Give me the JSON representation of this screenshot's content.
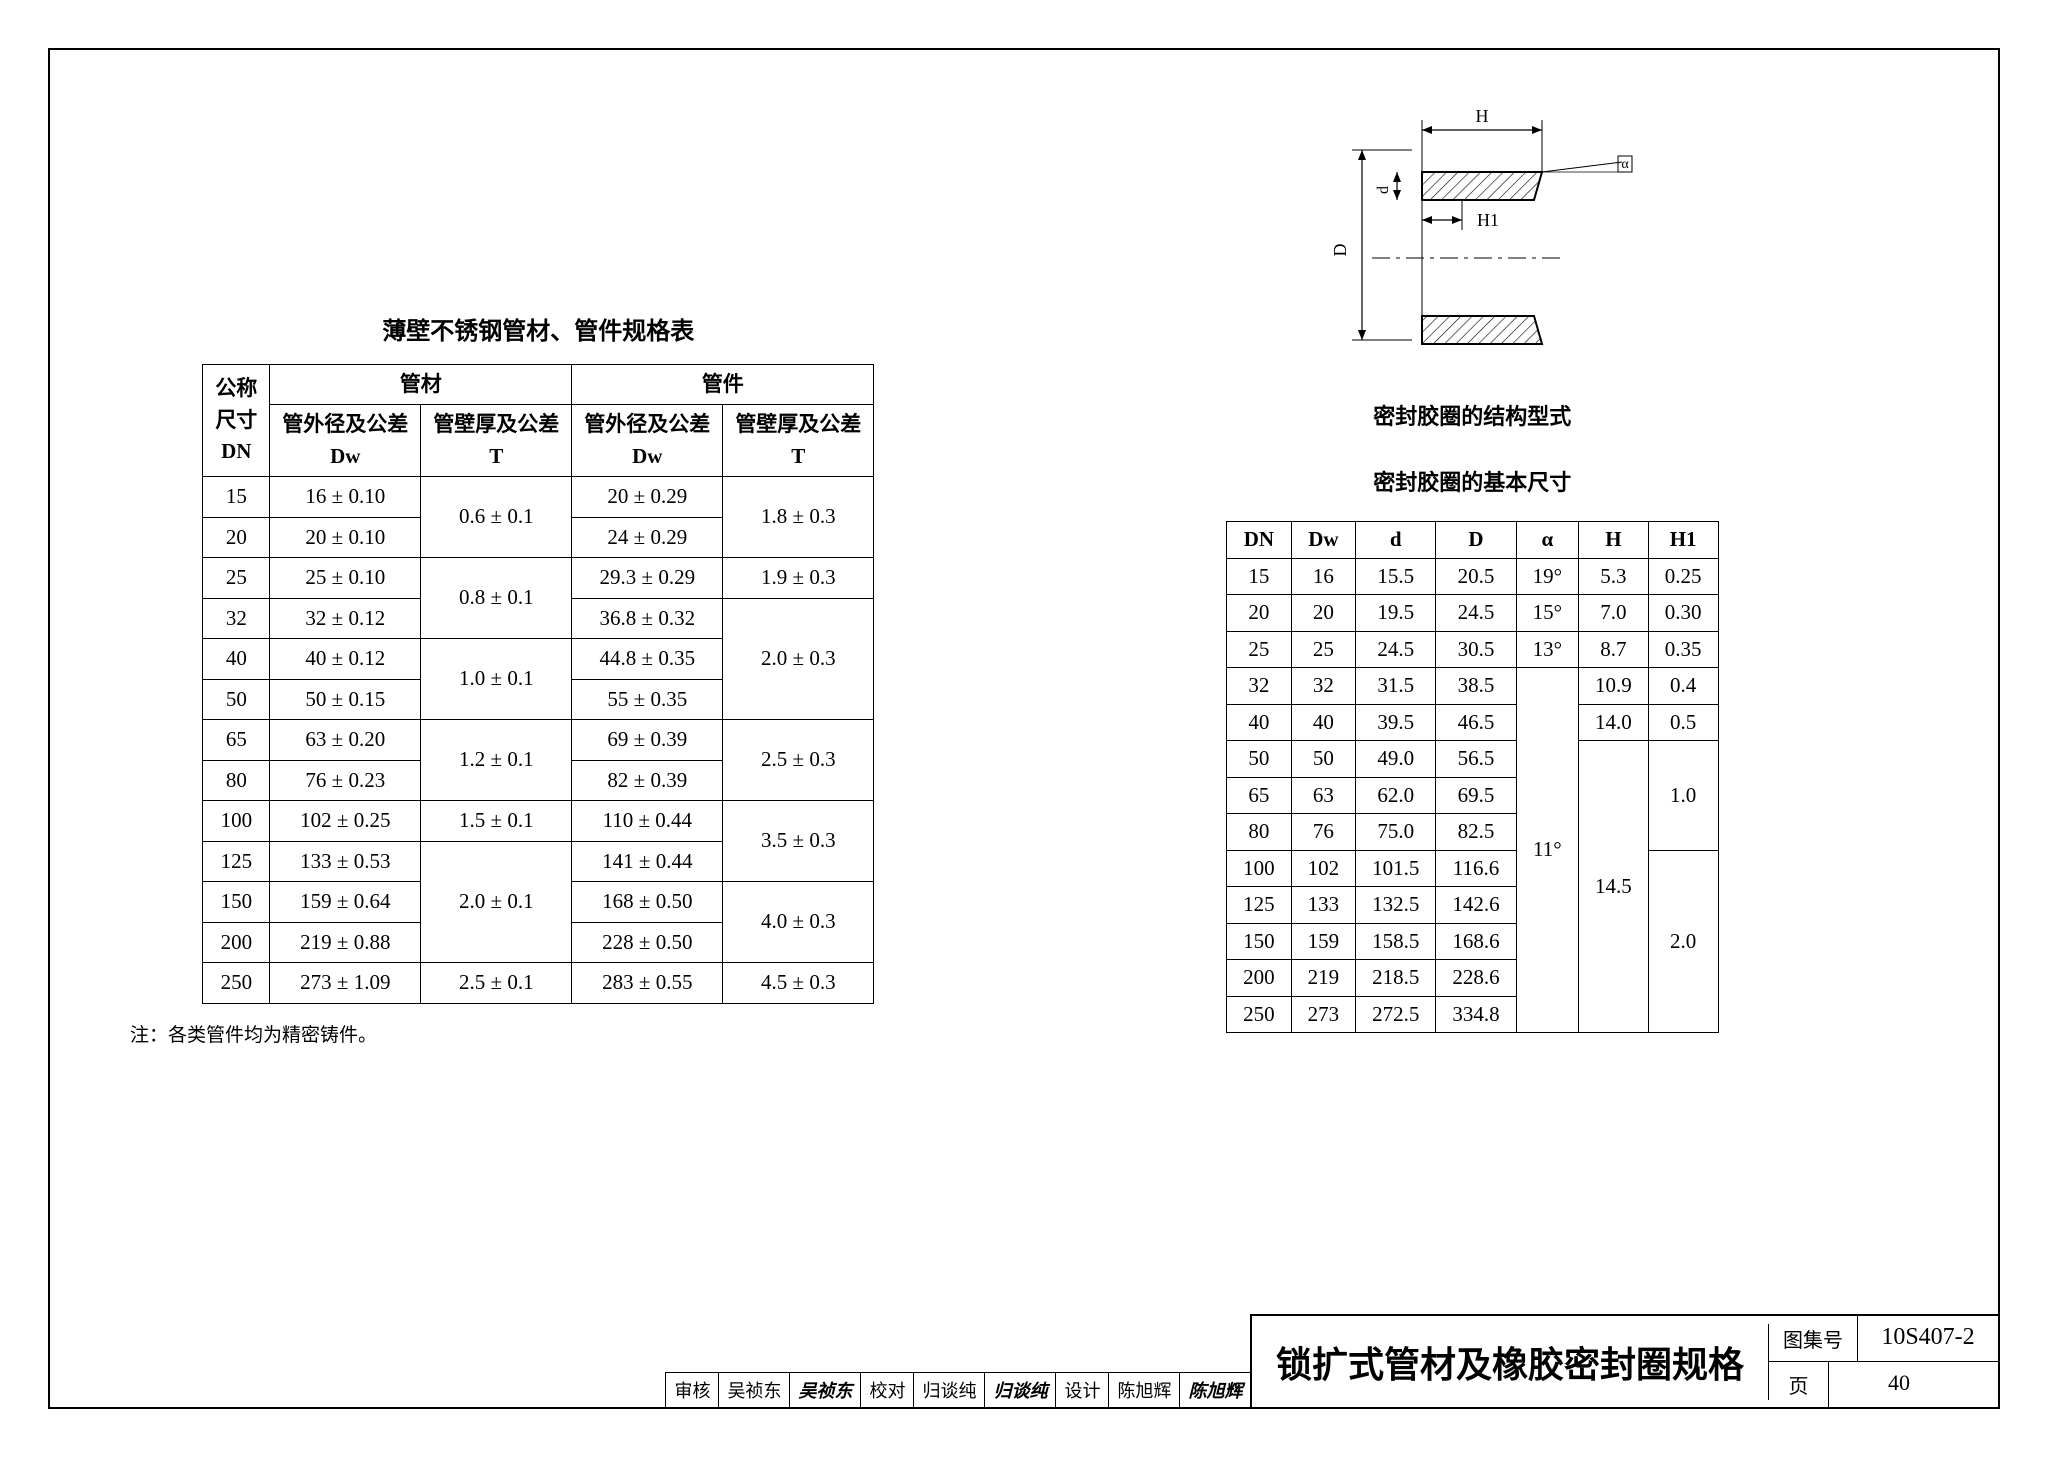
{
  "left": {
    "title": "薄壁不锈钢管材、管件规格表",
    "headers": {
      "c1a": "公称",
      "c1b": "尺寸",
      "c1c": "DN",
      "g1": "管材",
      "g2": "管件",
      "h1a": "管外径及公差",
      "h1b": "Dw",
      "h2a": "管壁厚及公差",
      "h2b": "T",
      "h3a": "管外径及公差",
      "h3b": "Dw",
      "h4a": "管壁厚及公差",
      "h4b": "T"
    },
    "rows": [
      {
        "dn": "15",
        "dw": "16 ± 0.10",
        "t": "0.6 ± 0.1",
        "t_span": 2,
        "dw2": "20 ± 0.29",
        "t2": "1.8 ± 0.3",
        "t2_span": 2
      },
      {
        "dn": "20",
        "dw": "20 ± 0.10",
        "dw2": "24 ± 0.29"
      },
      {
        "dn": "25",
        "dw": "25 ± 0.10",
        "t": "0.8 ± 0.1",
        "t_span": 2,
        "dw2": "29.3 ± 0.29",
        "t2": "1.9 ± 0.3",
        "t2_span": 1
      },
      {
        "dn": "32",
        "dw": "32 ± 0.12",
        "dw2": "36.8 ± 0.32",
        "t2": "2.0 ± 0.3",
        "t2_span": 3
      },
      {
        "dn": "40",
        "dw": "40 ± 0.12",
        "t": "1.0 ± 0.1",
        "t_span": 2,
        "dw2": "44.8 ± 0.35"
      },
      {
        "dn": "50",
        "dw": "50 ± 0.15",
        "dw2": "55 ± 0.35"
      },
      {
        "dn": "65",
        "dw": "63 ± 0.20",
        "t": "1.2 ± 0.1",
        "t_span": 2,
        "dw2": "69 ± 0.39",
        "t2": "2.5 ± 0.3",
        "t2_span": 2
      },
      {
        "dn": "80",
        "dw": "76 ± 0.23",
        "dw2": "82 ± 0.39"
      },
      {
        "dn": "100",
        "dw": "102 ± 0.25",
        "t": "1.5 ± 0.1",
        "t_span": 1,
        "dw2": "110 ± 0.44",
        "t2": "3.5 ± 0.3",
        "t2_span": 2
      },
      {
        "dn": "125",
        "dw": "133 ± 0.53",
        "t": "2.0 ± 0.1",
        "t_span": 3,
        "dw2": "141 ± 0.44"
      },
      {
        "dn": "150",
        "dw": "159 ± 0.64",
        "dw2": "168 ± 0.50",
        "t2": "4.0 ± 0.3",
        "t2_span": 2
      },
      {
        "dn": "200",
        "dw": "219 ± 0.88",
        "dw2": "228 ± 0.50"
      },
      {
        "dn": "250",
        "dw": "273 ± 1.09",
        "t": "2.5 ± 0.1",
        "t_span": 1,
        "dw2": "283 ± 0.55",
        "t2": "4.5 ± 0.3",
        "t2_span": 1
      }
    ],
    "note": "注：各类管件均为精密铸件。"
  },
  "right": {
    "diagram_labels": {
      "H": "H",
      "H1": "H1",
      "D": "D",
      "d": "d",
      "a": "α"
    },
    "caption1": "密封胶圈的结构型式",
    "caption2": "密封胶圈的基本尺寸",
    "headers": [
      "DN",
      "Dw",
      "d",
      "D",
      "α",
      "H",
      "H1"
    ],
    "rows": [
      {
        "dn": "15",
        "dw": "16",
        "d": "15.5",
        "D": "20.5",
        "a": "19°",
        "H": "5.3",
        "H1": "0.25"
      },
      {
        "dn": "20",
        "dw": "20",
        "d": "19.5",
        "D": "24.5",
        "a": "15°",
        "H": "7.0",
        "H1": "0.30"
      },
      {
        "dn": "25",
        "dw": "25",
        "d": "24.5",
        "D": "30.5",
        "a": "13°",
        "H": "8.7",
        "H1": "0.35"
      },
      {
        "dn": "32",
        "dw": "32",
        "d": "31.5",
        "D": "38.5",
        "a": "11°",
        "a_span": 10,
        "H": "10.9",
        "H1": "0.4"
      },
      {
        "dn": "40",
        "dw": "40",
        "d": "39.5",
        "D": "46.5",
        "H": "14.0",
        "H1": "0.5"
      },
      {
        "dn": "50",
        "dw": "50",
        "d": "49.0",
        "D": "56.5",
        "H": "14.5",
        "H_span": 8,
        "H1": "1.0",
        "H1_span": 3
      },
      {
        "dn": "65",
        "dw": "63",
        "d": "62.0",
        "D": "69.5"
      },
      {
        "dn": "80",
        "dw": "76",
        "d": "75.0",
        "D": "82.5"
      },
      {
        "dn": "100",
        "dw": "102",
        "d": "101.5",
        "D": "116.6",
        "H1": "2.0",
        "H1_span": 5
      },
      {
        "dn": "125",
        "dw": "133",
        "d": "132.5",
        "D": "142.6"
      },
      {
        "dn": "150",
        "dw": "159",
        "d": "158.5",
        "D": "168.6"
      },
      {
        "dn": "200",
        "dw": "219",
        "d": "218.5",
        "D": "228.6"
      },
      {
        "dn": "250",
        "dw": "273",
        "d": "272.5",
        "D": "334.8"
      }
    ]
  },
  "titleblock": {
    "main": "锁扩式管材及橡胶密封圈规格",
    "set_label": "图集号",
    "set_val": "10S407-2",
    "page_label": "页",
    "page_val": "40",
    "audit_label": "审核",
    "audit_name": "吴祯东",
    "audit_sig": "吴祯东",
    "check_label": "校对",
    "check_name": "归谈纯",
    "check_sig": "归谈纯",
    "design_label": "设计",
    "design_name": "陈旭辉",
    "design_sig": "陈旭辉"
  }
}
